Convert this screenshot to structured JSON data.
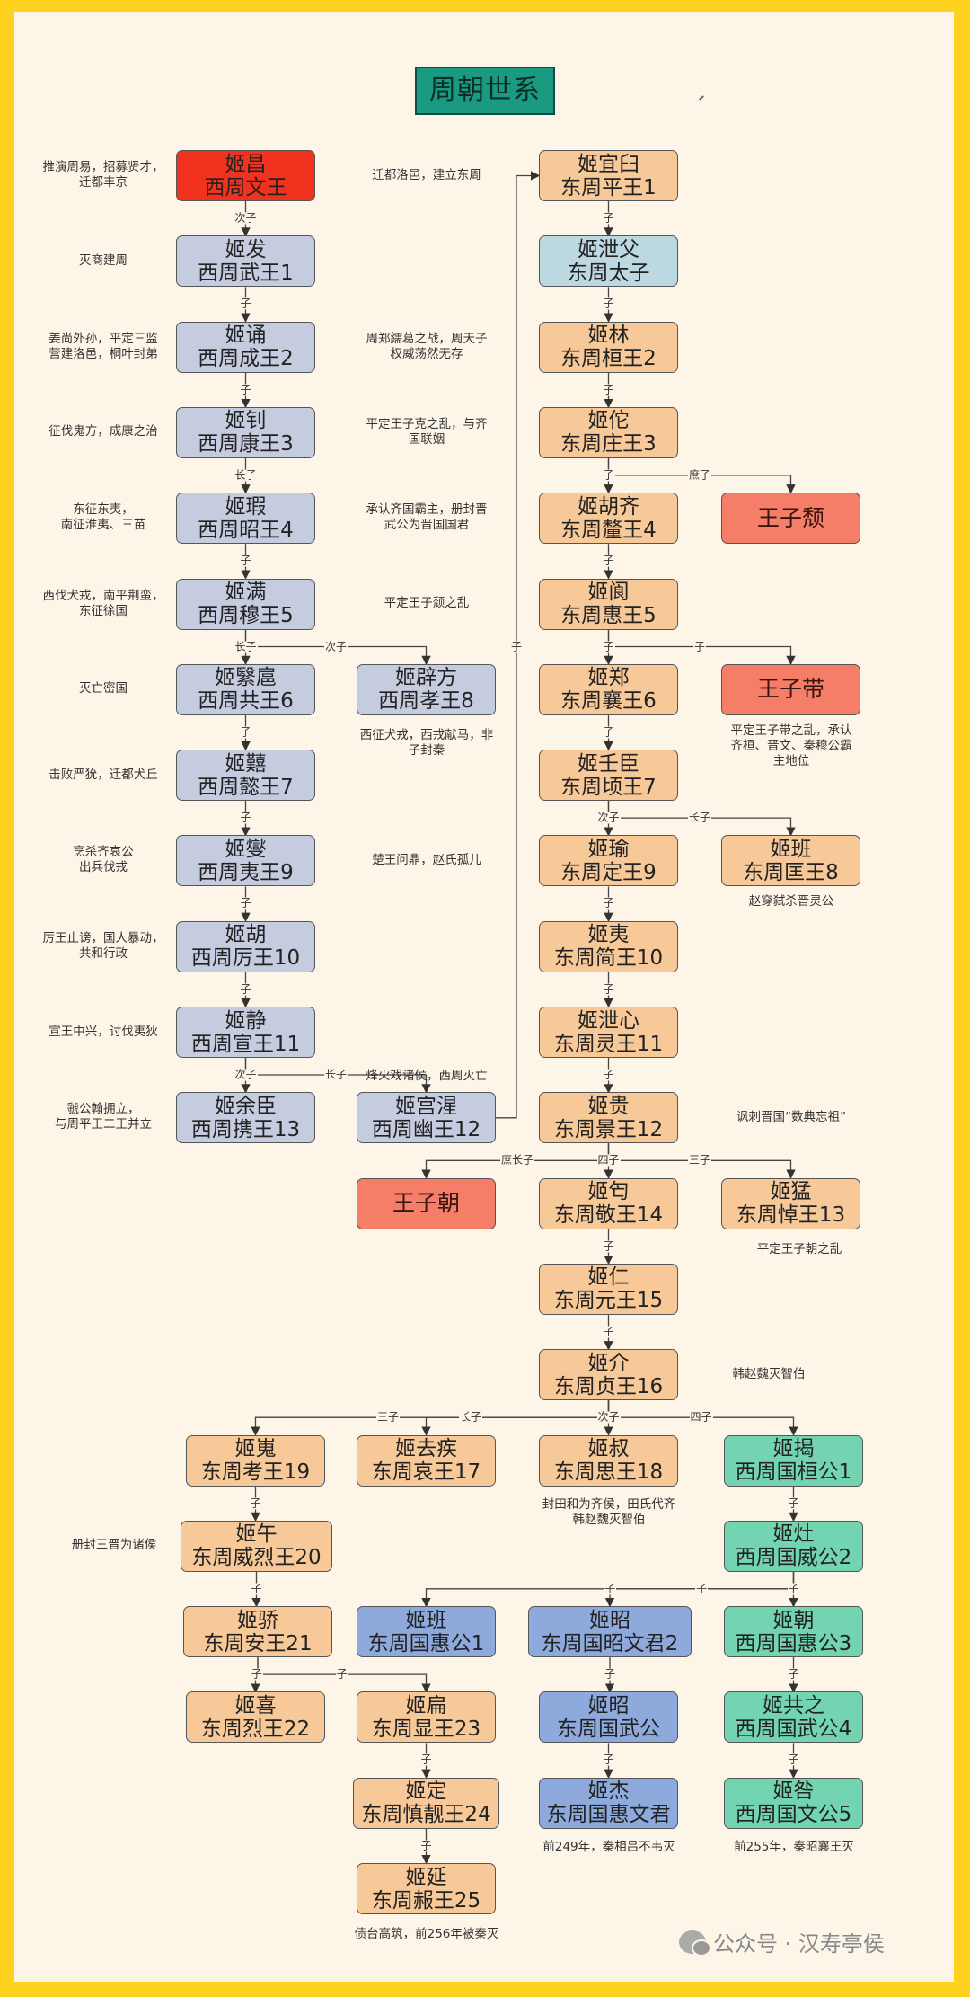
{
  "title": "周朝世系",
  "colors": {
    "frame": "#ffd21f",
    "background": "#fdf6e8",
    "title": "#1a9a80",
    "founder": "#f0321e",
    "western_zhou": "#c6cce0",
    "eastern_zhou": "#f7c898",
    "crown_prince": "#bcd8e0",
    "rebel_prince": "#f47e68",
    "east_zhou_state": "#8eaadc",
    "west_zhou_state": "#72d4b0"
  },
  "nodes": [
    {
      "id": "wen",
      "name": "姬昌",
      "title": "西周文王",
      "kind": "founder"
    },
    {
      "id": "wu",
      "name": "姬发",
      "title": "西周武王1",
      "kind": "western_zhou"
    },
    {
      "id": "cheng",
      "name": "姬诵",
      "title": "西周成王2",
      "kind": "western_zhou"
    },
    {
      "id": "kang",
      "name": "姬钊",
      "title": "西周康王3",
      "kind": "western_zhou"
    },
    {
      "id": "zhao",
      "name": "姬瑕",
      "title": "西周昭王4",
      "kind": "western_zhou"
    },
    {
      "id": "mu",
      "name": "姬满",
      "title": "西周穆王5",
      "kind": "western_zhou"
    },
    {
      "id": "gong",
      "name": "姬繄扈",
      "title": "西周共王6",
      "kind": "western_zhou"
    },
    {
      "id": "xiao",
      "name": "姬辟方",
      "title": "西周孝王8",
      "kind": "western_zhou"
    },
    {
      "id": "yi7",
      "name": "姬囏",
      "title": "西周懿王7",
      "kind": "western_zhou"
    },
    {
      "id": "yi9",
      "name": "姬燮",
      "title": "西周夷王9",
      "kind": "western_zhou"
    },
    {
      "id": "li",
      "name": "姬胡",
      "title": "西周厉王10",
      "kind": "western_zhou"
    },
    {
      "id": "xuan",
      "name": "姬静",
      "title": "西周宣王11",
      "kind": "western_zhou"
    },
    {
      "id": "xie",
      "name": "姬余臣",
      "title": "西周携王13",
      "kind": "western_zhou"
    },
    {
      "id": "you",
      "name": "姬宫湦",
      "title": "西周幽王12",
      "kind": "western_zhou"
    },
    {
      "id": "ping",
      "name": "姬宜臼",
      "title": "东周平王1",
      "kind": "eastern_zhou"
    },
    {
      "id": "xiefu",
      "name": "姬泄父",
      "title": "东周太子",
      "kind": "crown_prince"
    },
    {
      "id": "huan",
      "name": "姬林",
      "title": "东周桓王2",
      "kind": "eastern_zhou"
    },
    {
      "id": "zhuang",
      "name": "姬佗",
      "title": "东周庄王3",
      "kind": "eastern_zhou"
    },
    {
      "id": "xi",
      "name": "姬胡齐",
      "title": "东周釐王4",
      "kind": "eastern_zhou"
    },
    {
      "id": "tui",
      "name": "王子颓",
      "title": "",
      "kind": "rebel_prince"
    },
    {
      "id": "hui",
      "name": "姬阆",
      "title": "东周惠王5",
      "kind": "eastern_zhou"
    },
    {
      "id": "xiang",
      "name": "姬郑",
      "title": "东周襄王6",
      "kind": "eastern_zhou"
    },
    {
      "id": "dai",
      "name": "王子带",
      "title": "",
      "kind": "rebel_prince"
    },
    {
      "id": "qing",
      "name": "姬壬臣",
      "title": "东周顷王7",
      "kind": "eastern_zhou"
    },
    {
      "id": "ding",
      "name": "姬瑜",
      "title": "东周定王9",
      "kind": "eastern_zhou"
    },
    {
      "id": "kuang",
      "name": "姬班",
      "title": "东周匡王8",
      "kind": "eastern_zhou"
    },
    {
      "id": "jian",
      "name": "姬夷",
      "title": "东周简王10",
      "kind": "eastern_zhou"
    },
    {
      "id": "ling",
      "name": "姬泄心",
      "title": "东周灵王11",
      "kind": "eastern_zhou"
    },
    {
      "id": "jing",
      "name": "姬贵",
      "title": "东周景王12",
      "kind": "eastern_zhou"
    },
    {
      "id": "chao",
      "name": "王子朝",
      "title": "",
      "kind": "rebel_prince"
    },
    {
      "id": "jingw",
      "name": "姬匄",
      "title": "东周敬王14",
      "kind": "eastern_zhou"
    },
    {
      "id": "dao",
      "name": "姬猛",
      "title": "东周悼王13",
      "kind": "eastern_zhou"
    },
    {
      "id": "yuan",
      "name": "姬仁",
      "title": "东周元王15",
      "kind": "eastern_zhou"
    },
    {
      "id": "zhen",
      "name": "姬介",
      "title": "东周贞王16",
      "kind": "eastern_zhou"
    },
    {
      "id": "kao",
      "name": "姬嵬",
      "title": "东周考王19",
      "kind": "eastern_zhou"
    },
    {
      "id": "ai",
      "name": "姬去疾",
      "title": "东周哀王17",
      "kind": "eastern_zhou"
    },
    {
      "id": "si",
      "name": "姬叔",
      "title": "东周思王18",
      "kind": "eastern_zhou"
    },
    {
      "id": "xzhuan",
      "name": "姬揭",
      "title": "西周国桓公1",
      "kind": "west_zhou_state"
    },
    {
      "id": "weilie",
      "name": "姬午",
      "title": "东周威烈王20",
      "kind": "eastern_zhou"
    },
    {
      "id": "xzwei",
      "name": "姬灶",
      "title": "西周国威公2",
      "kind": "west_zhou_state"
    },
    {
      "id": "an",
      "name": "姬骄",
      "title": "东周安王21",
      "kind": "eastern_zhou"
    },
    {
      "id": "dzhui",
      "name": "姬班",
      "title": "东周国惠公1",
      "kind": "east_zhou_state"
    },
    {
      "id": "dzzhaowen",
      "name": "姬昭",
      "title": "东周国昭文君2",
      "kind": "east_zhou_state"
    },
    {
      "id": "xzhui",
      "name": "姬朝",
      "title": "西周国惠公3",
      "kind": "west_zhou_state"
    },
    {
      "id": "lie",
      "name": "姬喜",
      "title": "东周烈王22",
      "kind": "eastern_zhou"
    },
    {
      "id": "xian",
      "name": "姬扁",
      "title": "东周显王23",
      "kind": "eastern_zhou"
    },
    {
      "id": "dzwu",
      "name": "姬昭",
      "title": "东周国武公",
      "kind": "east_zhou_state"
    },
    {
      "id": "xzwu",
      "name": "姬共之",
      "title": "西周国武公4",
      "kind": "west_zhou_state"
    },
    {
      "id": "shenjing",
      "name": "姬定",
      "title": "东周慎靓王24",
      "kind": "eastern_zhou"
    },
    {
      "id": "dzhuiwen",
      "name": "姬杰",
      "title": "东周国惠文君",
      "kind": "east_zhou_state"
    },
    {
      "id": "xzwen",
      "name": "姬咎",
      "title": "西周国文公5",
      "kind": "west_zhou_state"
    },
    {
      "id": "nan",
      "name": "姬延",
      "title": "东周赧王25",
      "kind": "eastern_zhou"
    }
  ],
  "edges": [
    {
      "from": "wen",
      "to": "wu",
      "label": "次子"
    },
    {
      "from": "wu",
      "to": "cheng",
      "label": "子"
    },
    {
      "from": "cheng",
      "to": "kang",
      "label": "子"
    },
    {
      "from": "kang",
      "to": "zhao",
      "label": "长子"
    },
    {
      "from": "zhao",
      "to": "mu",
      "label": "子"
    },
    {
      "from": "mu",
      "to": "gong",
      "label": "长子"
    },
    {
      "from": "mu",
      "to": "xiao",
      "label": "次子"
    },
    {
      "from": "gong",
      "to": "yi7",
      "label": "子"
    },
    {
      "from": "yi7",
      "to": "yi9",
      "label": "子"
    },
    {
      "from": "yi9",
      "to": "li",
      "label": "子"
    },
    {
      "from": "li",
      "to": "xuan",
      "label": "子"
    },
    {
      "from": "xuan",
      "to": "xie",
      "label": "次子"
    },
    {
      "from": "xuan",
      "to": "you",
      "label": "长子"
    },
    {
      "from": "you",
      "to": "ping",
      "label": "子"
    },
    {
      "from": "ping",
      "to": "xiefu",
      "label": "子"
    },
    {
      "from": "xiefu",
      "to": "huan",
      "label": "子"
    },
    {
      "from": "huan",
      "to": "zhuang",
      "label": "子"
    },
    {
      "from": "zhuang",
      "to": "xi",
      "label": "子"
    },
    {
      "from": "zhuang",
      "to": "tui",
      "label": "庶子"
    },
    {
      "from": "xi",
      "to": "hui",
      "label": "子"
    },
    {
      "from": "hui",
      "to": "xiang",
      "label": "子"
    },
    {
      "from": "hui",
      "to": "dai",
      "label": "子"
    },
    {
      "from": "xiang",
      "to": "qing",
      "label": "子"
    },
    {
      "from": "qing",
      "to": "ding",
      "label": "次子"
    },
    {
      "from": "qing",
      "to": "kuang",
      "label": "长子"
    },
    {
      "from": "ding",
      "to": "jian",
      "label": "子"
    },
    {
      "from": "jian",
      "to": "ling",
      "label": "子"
    },
    {
      "from": "ling",
      "to": "jing",
      "label": "子"
    },
    {
      "from": "jing",
      "to": "jingw",
      "label": "四子"
    },
    {
      "from": "jing",
      "to": "chao",
      "label": "庶长子"
    },
    {
      "from": "jing",
      "to": "dao",
      "label": "三子"
    },
    {
      "from": "jingw",
      "to": "yuan",
      "label": "子"
    },
    {
      "from": "yuan",
      "to": "zhen",
      "label": "子"
    },
    {
      "from": "zhen",
      "to": "si",
      "label": "次子"
    },
    {
      "from": "zhen",
      "to": "kao",
      "label": "三子"
    },
    {
      "from": "zhen",
      "to": "ai",
      "label": "长子"
    },
    {
      "from": "zhen",
      "to": "xzhuan",
      "label": "四子"
    },
    {
      "from": "kao",
      "to": "weilie",
      "label": "子"
    },
    {
      "from": "weilie",
      "to": "an",
      "label": "子"
    },
    {
      "from": "an",
      "to": "lie",
      "label": "子"
    },
    {
      "from": "an",
      "to": "xian",
      "label": "子"
    },
    {
      "from": "xian",
      "to": "shenjing",
      "label": "子"
    },
    {
      "from": "shenjing",
      "to": "nan",
      "label": "子"
    },
    {
      "from": "xzhuan",
      "to": "xzwei",
      "label": "子"
    },
    {
      "from": "xzwei",
      "to": "xzhui",
      "label": "子"
    },
    {
      "from": "xzwei",
      "to": "dzhui",
      "label": "子"
    },
    {
      "from": "xzwei",
      "to": "dzzhaowen",
      "label": "子"
    },
    {
      "from": "dzzhaowen",
      "to": "dzwu",
      "label": "子"
    },
    {
      "from": "dzwu",
      "to": "dzhuiwen",
      "label": "子"
    },
    {
      "from": "xzhui",
      "to": "xzwu",
      "label": "子"
    },
    {
      "from": "xzwu",
      "to": "xzwen",
      "label": "子"
    }
  ],
  "notes": [
    "推演周易，招募贤才，\n迁都丰京",
    "灭商建周",
    "姜尚外孙，平定三监\n营建洛邑，桐叶封弟",
    "征伐鬼方，成康之治",
    "东征东夷，\n南征淮夷、三苗",
    "西伐犬戎，南平荆蛮，\n东征徐国",
    "灭亡密国",
    "击败严狁，迁都犬丘",
    "烹杀齐哀公\n出兵伐戎",
    "厉王止谤，国人暴动，\n共和行政",
    "宣王中兴，讨伐夷狄",
    "虢公翰拥立，\n与周平王二王并立",
    "迁都洛邑，建立东周",
    "周郑繻葛之战，周天子\n权威荡然无存",
    "平定王子克之乱，与齐\n国联姻",
    "承认齐国霸主，册封晋\n武公为晋国国君",
    "平定王子颓之乱",
    "西征犬戎，西戎献马，非\n子封秦",
    "楚王问鼎，赵氏孤儿",
    "烽火戏诸侯，西周灭亡",
    "平定王子带之乱，承认\n齐桓、晋文、秦穆公霸\n主地位",
    "赵穿弑杀晋灵公",
    "讽刺晋国“数典忘祖”",
    "平定王子朝之乱",
    "韩赵魏灭智伯",
    "封田和为齐侯，田氏代齐\n韩赵魏灭智伯",
    "册封三晋为诸侯",
    "前249年，秦相吕不韦灭",
    "前255年，秦昭襄王灭",
    "债台高筑，前256年被秦灭"
  ],
  "watermark": "公众号 · 汉寿亭侯"
}
